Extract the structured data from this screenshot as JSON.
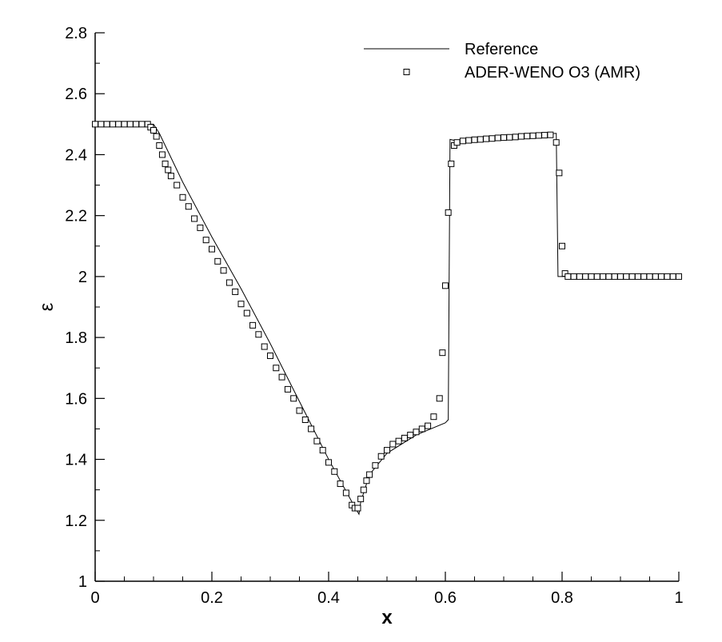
{
  "chart_data": {
    "type": "line",
    "xlabel": "x",
    "ylabel": "ε",
    "xlim": [
      0,
      1
    ],
    "ylim": [
      1,
      2.8
    ],
    "xticks": [
      0,
      0.2,
      0.4,
      0.6,
      0.8,
      1
    ],
    "yticks": [
      1,
      1.2,
      1.4,
      1.6,
      1.8,
      2,
      2.2,
      2.4,
      2.6,
      2.8
    ],
    "xminor_ticks": [
      0.05,
      0.1,
      0.15,
      0.25,
      0.3,
      0.35,
      0.45,
      0.5,
      0.55,
      0.65,
      0.7,
      0.75,
      0.85,
      0.9,
      0.95
    ],
    "yminor_ticks": [
      1.1,
      1.3,
      1.5,
      1.7,
      1.9,
      2.1,
      2.3,
      2.5,
      2.7
    ],
    "legend": "upper right",
    "series": [
      {
        "name": "Reference",
        "kind": "line",
        "color": "#000000",
        "x": [
          0,
          0.1,
          0.11,
          0.15,
          0.2,
          0.25,
          0.3,
          0.35,
          0.4,
          0.44,
          0.452,
          0.455,
          0.47,
          0.5,
          0.55,
          0.6,
          0.605,
          0.608,
          0.62,
          0.7,
          0.79,
          0.793,
          1
        ],
        "values": [
          2.5,
          2.5,
          2.47,
          2.31,
          2.13,
          1.96,
          1.78,
          1.59,
          1.4,
          1.26,
          1.22,
          1.26,
          1.35,
          1.42,
          1.48,
          1.52,
          1.53,
          2.45,
          2.445,
          2.455,
          2.47,
          2.0,
          2.0
        ]
      },
      {
        "name": "ADER-WENO O3 (AMR)",
        "kind": "scatter",
        "color": "#000000",
        "x": [
          0,
          0.01,
          0.02,
          0.03,
          0.04,
          0.05,
          0.06,
          0.07,
          0.08,
          0.09,
          0.095,
          0.1,
          0.105,
          0.11,
          0.115,
          0.12,
          0.125,
          0.13,
          0.14,
          0.15,
          0.16,
          0.17,
          0.18,
          0.19,
          0.2,
          0.21,
          0.22,
          0.23,
          0.24,
          0.25,
          0.26,
          0.27,
          0.28,
          0.29,
          0.3,
          0.31,
          0.32,
          0.33,
          0.34,
          0.35,
          0.36,
          0.37,
          0.38,
          0.39,
          0.4,
          0.41,
          0.42,
          0.43,
          0.44,
          0.445,
          0.45,
          0.455,
          0.46,
          0.465,
          0.47,
          0.48,
          0.49,
          0.5,
          0.51,
          0.52,
          0.53,
          0.54,
          0.55,
          0.56,
          0.57,
          0.58,
          0.59,
          0.595,
          0.6,
          0.605,
          0.61,
          0.615,
          0.62,
          0.63,
          0.64,
          0.65,
          0.66,
          0.67,
          0.68,
          0.69,
          0.7,
          0.71,
          0.72,
          0.73,
          0.74,
          0.75,
          0.76,
          0.77,
          0.78,
          0.79,
          0.795,
          0.8,
          0.805,
          0.81,
          0.82,
          0.83,
          0.84,
          0.85,
          0.86,
          0.87,
          0.88,
          0.89,
          0.9,
          0.91,
          0.92,
          0.93,
          0.94,
          0.95,
          0.96,
          0.97,
          0.98,
          0.99,
          1
        ],
        "values": [
          2.5,
          2.5,
          2.5,
          2.5,
          2.5,
          2.5,
          2.5,
          2.5,
          2.5,
          2.5,
          2.49,
          2.48,
          2.46,
          2.43,
          2.4,
          2.37,
          2.35,
          2.33,
          2.3,
          2.26,
          2.23,
          2.19,
          2.16,
          2.12,
          2.09,
          2.05,
          2.02,
          1.98,
          1.95,
          1.91,
          1.88,
          1.84,
          1.81,
          1.77,
          1.74,
          1.7,
          1.67,
          1.63,
          1.6,
          1.56,
          1.53,
          1.5,
          1.46,
          1.43,
          1.39,
          1.36,
          1.32,
          1.29,
          1.25,
          1.24,
          1.24,
          1.27,
          1.3,
          1.33,
          1.35,
          1.38,
          1.41,
          1.43,
          1.45,
          1.46,
          1.47,
          1.48,
          1.49,
          1.5,
          1.51,
          1.54,
          1.6,
          1.75,
          1.97,
          2.21,
          2.37,
          2.43,
          2.44,
          2.445,
          2.447,
          2.449,
          2.45,
          2.452,
          2.453,
          2.455,
          2.456,
          2.457,
          2.458,
          2.46,
          2.461,
          2.462,
          2.463,
          2.464,
          2.465,
          2.44,
          2.34,
          2.1,
          2.01,
          2,
          2,
          2,
          2,
          2,
          2,
          2,
          2,
          2,
          2,
          2,
          2,
          2,
          2,
          2,
          2,
          2,
          2,
          2,
          2
        ]
      }
    ]
  }
}
